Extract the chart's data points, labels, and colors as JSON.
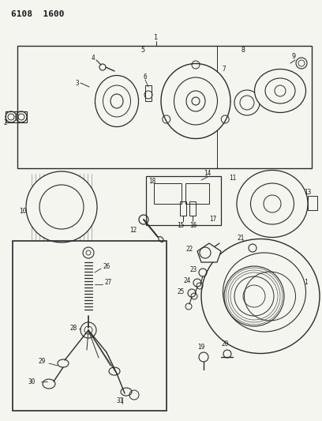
{
  "title": "6108  1600",
  "bg_color": "#f5f5f0",
  "line_color": "#2a2a2a",
  "text_color": "#1a1a1a",
  "fig_width": 4.08,
  "fig_height": 5.33,
  "dpi": 100
}
